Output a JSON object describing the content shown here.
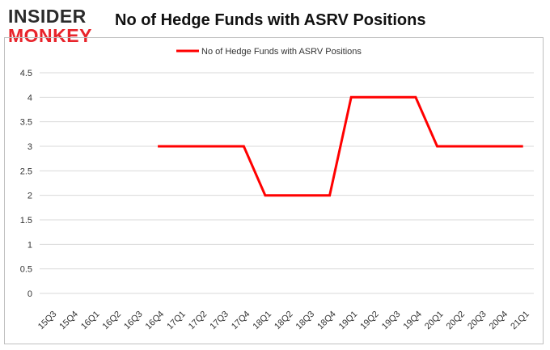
{
  "logo": {
    "line1": "INSIDER",
    "line2": "MONKEY"
  },
  "colors": {
    "series": "#ff0000",
    "grid": "#d9d9d9",
    "logo_dark": "#2b2b2b",
    "logo_red": "#e8242b"
  },
  "chart_data": {
    "type": "line",
    "title": "No of Hedge Funds with ASRV Positions",
    "legend_position": "top-center",
    "grid": true,
    "ylim": [
      0,
      4.5
    ],
    "y_ticks": [
      "0",
      "0.5",
      "1",
      "1.5",
      "2",
      "2.5",
      "3",
      "3.5",
      "4",
      "4.5"
    ],
    "categories": [
      "15Q3",
      "15Q4",
      "16Q1",
      "16Q2",
      "16Q3",
      "16Q4",
      "17Q1",
      "17Q2",
      "17Q3",
      "17Q4",
      "18Q1",
      "18Q2",
      "18Q3",
      "18Q4",
      "19Q1",
      "19Q2",
      "19Q3",
      "19Q4",
      "20Q1",
      "20Q2",
      "20Q3",
      "20Q4",
      "21Q1"
    ],
    "series": [
      {
        "name": "No of Hedge Funds with ASRV Positions",
        "values": [
          null,
          null,
          null,
          null,
          null,
          3,
          3,
          3,
          3,
          3,
          2,
          2,
          2,
          2,
          4,
          4,
          4,
          4,
          3,
          3,
          3,
          3,
          3
        ]
      }
    ]
  }
}
